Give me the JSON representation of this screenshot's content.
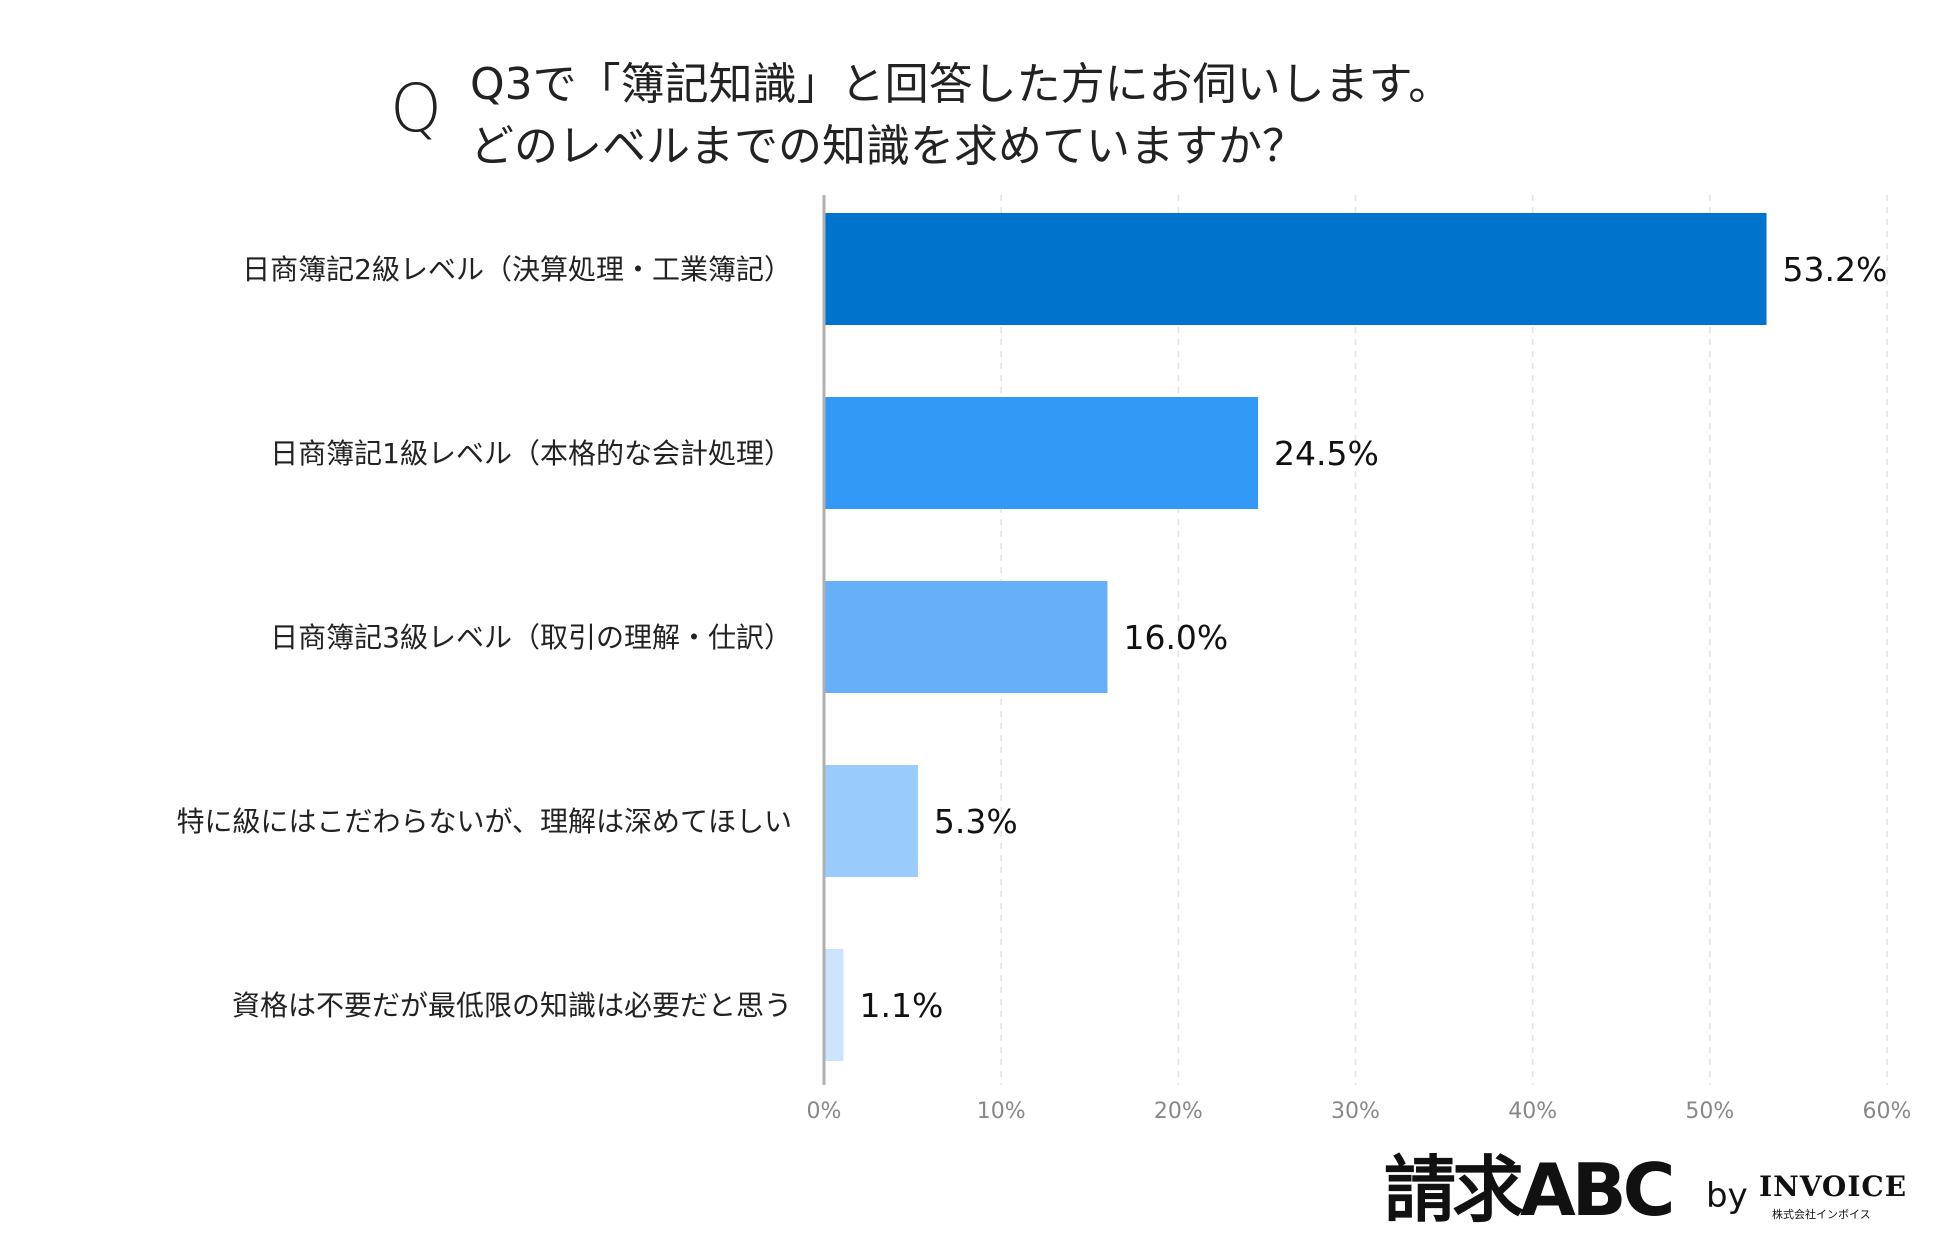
{
  "title": {
    "q_mark": "Q",
    "line1": "Q3で「簿記知識」と回答した方にお伺いします。",
    "line2": "どのレベルまでの知識を求めていますか？"
  },
  "chart_data": {
    "type": "bar",
    "orientation": "horizontal",
    "categories": [
      "日商簿記2級レベル（決算処理・工業簿記）",
      "日商簿記1級レベル（本格的な会計処理）",
      "日商簿記3級レベル（取引の理解・仕訳）",
      "特に級にはこだわらないが、理解は深めてほしい",
      "資格は不要だが最低限の知識は必要だと思う"
    ],
    "values": [
      53.2,
      24.5,
      16.0,
      5.3,
      1.1
    ],
    "value_labels": [
      "53.2%",
      "24.5%",
      "16.0%",
      "5.3%",
      "1.1%"
    ],
    "colors": [
      "#0074cc",
      "#3399f7",
      "#66b0f9",
      "#99cbfb",
      "#cce5fd"
    ],
    "xlim": [
      0,
      60
    ],
    "xticks": [
      0,
      10,
      20,
      30,
      40,
      50,
      60
    ],
    "xtick_labels": [
      "0%",
      "10%",
      "20%",
      "30%",
      "40%",
      "50%",
      "60%"
    ],
    "grid": true,
    "xlabel": "",
    "ylabel": ""
  },
  "logo": {
    "main": "請求ABC",
    "by": "by",
    "brand": "INVOICE",
    "sub": "株式会社インボイス"
  }
}
